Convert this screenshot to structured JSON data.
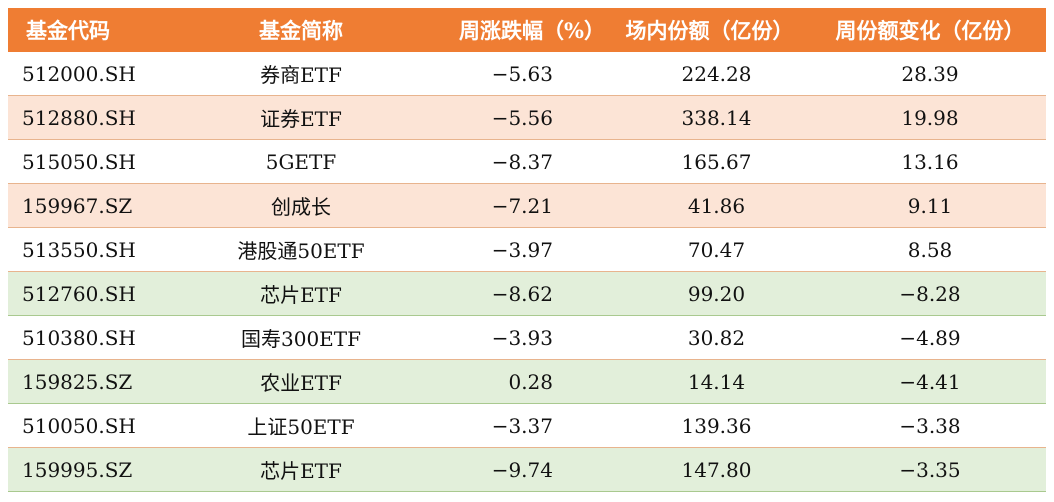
{
  "headers": [
    "基金代码",
    "基金简称",
    "周涨跌幅（%）",
    "场内份额（亿份）",
    "周份额变化（亿份）"
  ],
  "rows": [
    {
      "code": "512000.SH",
      "name": "券商ETF",
      "change": "−5.63",
      "shares": "224.28",
      "delta": "28.39",
      "tone": "white"
    },
    {
      "code": "512880.SH",
      "name": "证券ETF",
      "change": "−5.56",
      "shares": "338.14",
      "delta": "19.98",
      "tone": "peach"
    },
    {
      "code": "515050.SH",
      "name": "5GETF",
      "change": "−8.37",
      "shares": "165.67",
      "delta": "13.16",
      "tone": "white"
    },
    {
      "code": "159967.SZ",
      "name": "创成长",
      "change": "−7.21",
      "shares": "41.86",
      "delta": "9.11",
      "tone": "peach"
    },
    {
      "code": "513550.SH",
      "name": "港股通50ETF",
      "change": "−3.97",
      "shares": "70.47",
      "delta": "8.58",
      "tone": "white"
    },
    {
      "code": "512760.SH",
      "name": "芯片ETF",
      "change": "−8.62",
      "shares": "99.20",
      "delta": "−8.28",
      "tone": "green"
    },
    {
      "code": "510380.SH",
      "name": "国寿300ETF",
      "change": "−3.93",
      "shares": "30.82",
      "delta": "−4.89",
      "tone": "white"
    },
    {
      "code": "159825.SZ",
      "name": "农业ETF",
      "change": "0.28",
      "shares": "14.14",
      "delta": "−4.41",
      "tone": "green"
    },
    {
      "code": "510050.SH",
      "name": "上证50ETF",
      "change": "−3.37",
      "shares": "139.36",
      "delta": "−3.38",
      "tone": "white"
    },
    {
      "code": "159995.SZ",
      "name": "芯片ETF",
      "change": "−9.74",
      "shares": "147.80",
      "delta": "−3.35",
      "tone": "green"
    }
  ]
}
